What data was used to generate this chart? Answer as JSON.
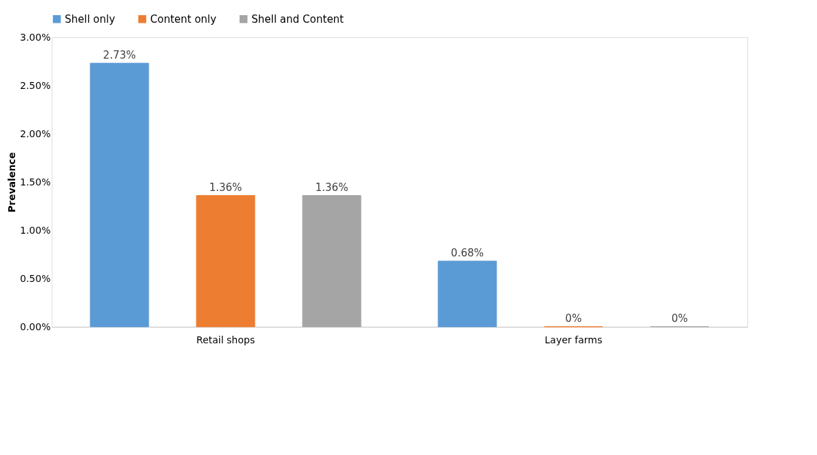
{
  "chart_data": {
    "type": "bar",
    "ylabel": "Prevalence",
    "categories": [
      "Retail shops",
      "Layer farms"
    ],
    "series": [
      {
        "name": "Shell only",
        "color": "#5b9bd5",
        "values": [
          2.73,
          0.68
        ],
        "value_labels": [
          "2.73%",
          "0.68%"
        ]
      },
      {
        "name": "Content only",
        "color": "#ed7d31",
        "values": [
          1.36,
          0
        ],
        "value_labels": [
          "1.36%",
          "0%"
        ]
      },
      {
        "name": "Shell and Content",
        "color": "#a5a5a5",
        "values": [
          1.36,
          0
        ],
        "value_labels": [
          "1.36%",
          "0%"
        ]
      }
    ],
    "ylim": [
      0,
      3
    ],
    "yticks": [
      {
        "value": 0,
        "label": "0.00%"
      },
      {
        "value": 0.5,
        "label": "0.50%"
      },
      {
        "value": 1,
        "label": "1.00%"
      },
      {
        "value": 1.5,
        "label": "1.50%"
      },
      {
        "value": 2,
        "label": "2.00%"
      },
      {
        "value": 2.5,
        "label": "2.50%"
      },
      {
        "value": 3,
        "label": "3.00%"
      }
    ],
    "grid": false,
    "legend": "top"
  }
}
